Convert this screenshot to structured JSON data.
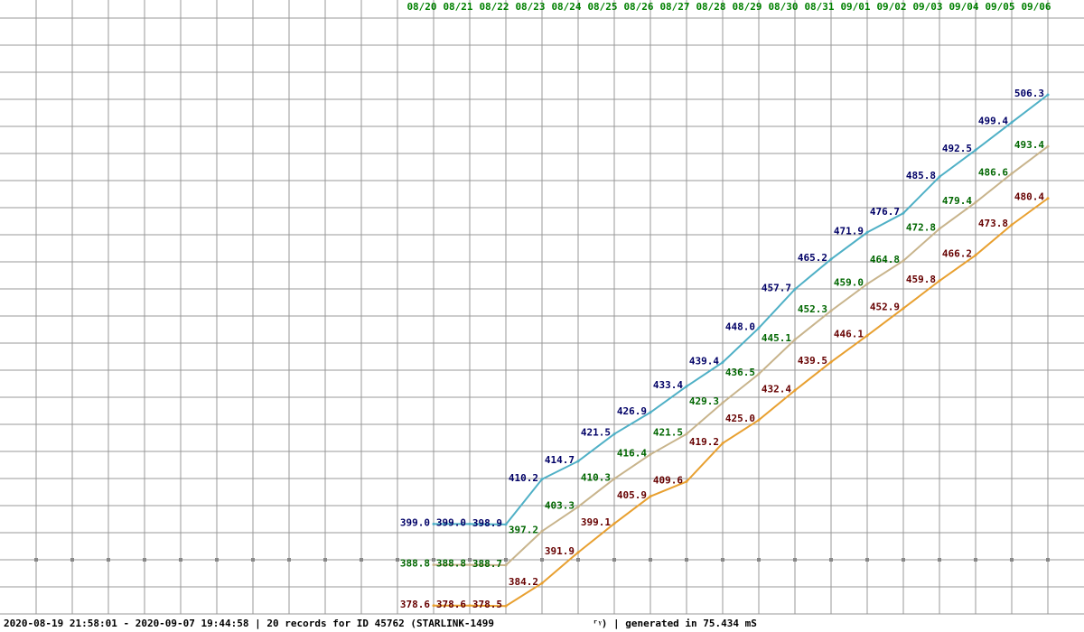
{
  "chart_data": {
    "type": "line",
    "categories": [
      "08/20",
      "08/21",
      "08/22",
      "08/23",
      "08/24",
      "08/25",
      "08/26",
      "08/27",
      "08/28",
      "08/29",
      "08/30",
      "08/31",
      "09/01",
      "09/02",
      "09/03",
      "09/04",
      "09/05",
      "09/06"
    ],
    "series": [
      {
        "color": "#4fb0c6",
        "label_color": "#000066",
        "values": [
          399.0,
          399.0,
          398.9,
          410.2,
          414.7,
          421.5,
          426.9,
          433.4,
          439.4,
          448.0,
          457.7,
          465.2,
          471.9,
          476.7,
          485.8,
          492.5,
          499.4,
          506.3
        ],
        "value_labels": [
          "399.0",
          "399.0",
          "398.9",
          "410.2",
          "414.7",
          "421.5",
          "426.9",
          "433.4",
          "439.4",
          "448.0",
          "457.7",
          "465.2",
          "471.9",
          "476.7",
          "485.8",
          "492.5",
          "499.4",
          "506.3"
        ]
      },
      {
        "color": "#c8b48c",
        "label_color": "#006600",
        "values": [
          388.8,
          388.8,
          388.7,
          397.2,
          403.3,
          410.3,
          416.4,
          421.5,
          429.3,
          436.5,
          445.1,
          452.3,
          459.0,
          464.8,
          472.8,
          479.4,
          486.6,
          493.4
        ],
        "value_labels": [
          "388.8",
          "388.8",
          "388.7",
          "397.2",
          "403.3",
          "410.3",
          "416.4",
          "421.5",
          "429.3",
          "436.5",
          "445.1",
          "452.3",
          "459.0",
          "464.8",
          "472.8",
          "479.4",
          "486.6",
          "493.4"
        ]
      },
      {
        "color": "#e8a030",
        "label_color": "#660000",
        "values": [
          378.6,
          378.6,
          378.5,
          384.2,
          391.9,
          399.1,
          405.9,
          409.6,
          419.2,
          425.0,
          432.4,
          439.5,
          446.1,
          452.9,
          459.8,
          466.2,
          473.8,
          480.4
        ],
        "value_labels": [
          "378.6",
          "378.6",
          "378.5",
          "384.2",
          "391.9",
          "399.1",
          "405.9",
          "409.6",
          "419.2",
          "425.0",
          "432.4",
          "439.5",
          "446.1",
          "452.9",
          "459.8",
          "466.2",
          "473.8",
          "480.4"
        ]
      }
    ],
    "ylim": [
      372,
      530
    ],
    "category_color": "#008000",
    "footer": [
      "2020-08-19 21:58:01 - 2020-09-07 19:44:58 | 20 records for ID 45762 (STARLINK-1499",
      "ʳᵞ) | generated in  75.434 mS"
    ]
  }
}
